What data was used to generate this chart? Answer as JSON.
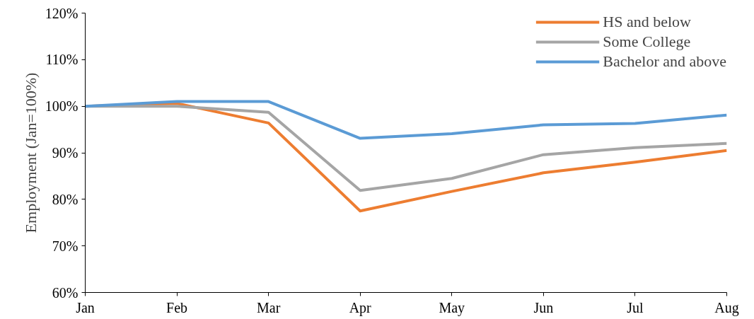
{
  "chart_data": {
    "type": "line",
    "ylabel": "Employment (Jan=100%)",
    "categories": [
      "Jan",
      "Feb",
      "Mar",
      "Apr",
      "May",
      "Jun",
      "Jul",
      "Aug"
    ],
    "series": [
      {
        "name": "HS and below",
        "color": "#ed7d31",
        "values": [
          100,
          100.6,
          96.4,
          77.5,
          81.7,
          85.7,
          88,
          90.5
        ]
      },
      {
        "name": "Some College",
        "color": "#a5a5a5",
        "values": [
          100,
          100,
          98.7,
          81.9,
          84.5,
          89.6,
          91.1,
          92
        ]
      },
      {
        "name": "Bachelor and above",
        "color": "#5b9bd5",
        "values": [
          100,
          101,
          101,
          93.1,
          94.1,
          96,
          96.3,
          98.1
        ]
      }
    ],
    "ylim": [
      60,
      120
    ],
    "yticks": [
      {
        "value": 60,
        "label": "60%"
      },
      {
        "value": 70,
        "label": "70%"
      },
      {
        "value": 80,
        "label": "80%"
      },
      {
        "value": 90,
        "label": "90%"
      },
      {
        "value": 100,
        "label": "100%"
      },
      {
        "value": 110,
        "label": "110%"
      },
      {
        "value": 120,
        "label": "120%"
      }
    ],
    "grid": false,
    "legend": "top right",
    "marker": "none",
    "line_style": "solid"
  }
}
